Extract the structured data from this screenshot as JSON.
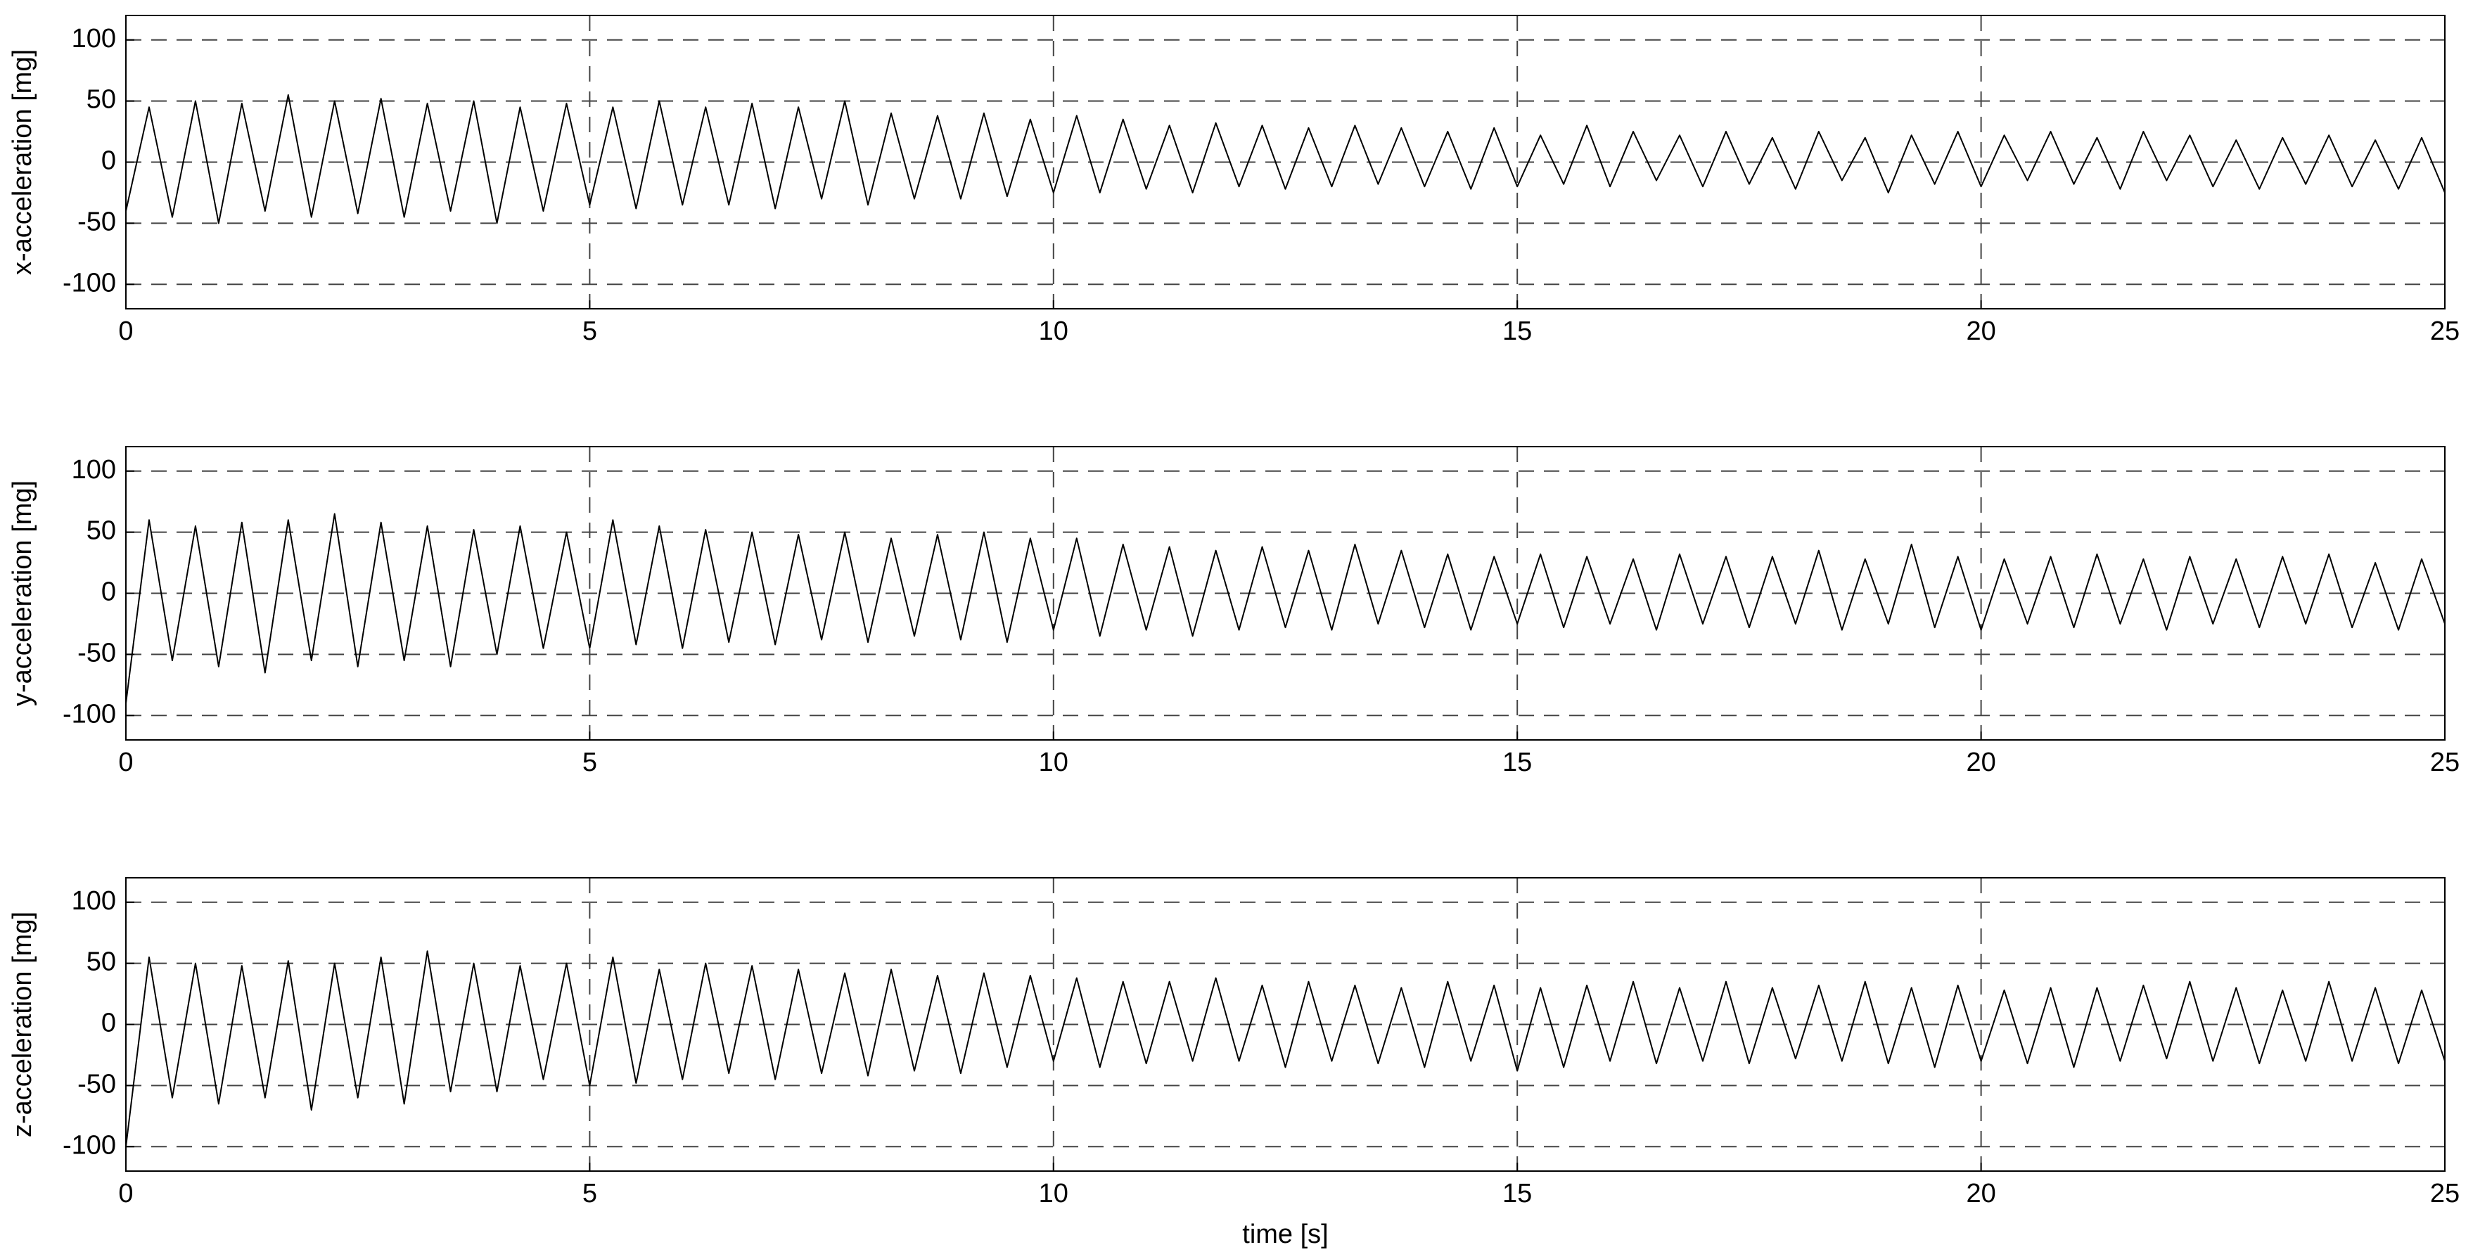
{
  "chart_data": [
    {
      "type": "line",
      "ylabel": "x-acceleration [mg]",
      "color": "#000000",
      "grid": true,
      "xlim": [
        0,
        25
      ],
      "ylim": [
        -120,
        120
      ],
      "xticks": [
        0,
        5,
        10,
        15,
        20,
        25
      ],
      "yticks": [
        -100,
        -50,
        0,
        50,
        100
      ],
      "x": [
        0,
        0.25,
        0.5,
        0.75,
        1,
        1.25,
        1.5,
        1.75,
        2,
        2.25,
        2.5,
        2.75,
        3,
        3.25,
        3.5,
        3.75,
        4,
        4.25,
        4.5,
        4.75,
        5,
        5.25,
        5.5,
        5.75,
        6,
        6.25,
        6.5,
        6.75,
        7,
        7.25,
        7.5,
        7.75,
        8,
        8.25,
        8.5,
        8.75,
        9,
        9.25,
        9.5,
        9.75,
        10,
        10.25,
        10.5,
        10.75,
        11,
        11.25,
        11.5,
        11.75,
        12,
        12.25,
        12.5,
        12.75,
        13,
        13.25,
        13.5,
        13.75,
        14,
        14.25,
        14.5,
        14.75,
        15,
        15.25,
        15.5,
        15.75,
        16,
        16.25,
        16.5,
        16.75,
        17,
        17.25,
        17.5,
        17.75,
        18,
        18.25,
        18.5,
        18.75,
        19,
        19.25,
        19.5,
        19.75,
        20,
        20.25,
        20.5,
        20.75,
        21,
        21.25,
        21.5,
        21.75,
        22,
        22.25,
        22.5,
        22.75,
        23,
        23.25,
        23.5,
        23.75,
        24,
        24.25,
        24.5,
        24.75,
        25
      ],
      "values": [
        -40,
        45,
        -45,
        50,
        -50,
        48,
        -40,
        55,
        -45,
        50,
        -42,
        52,
        -45,
        48,
        -40,
        50,
        -50,
        45,
        -40,
        48,
        -35,
        45,
        -38,
        50,
        -35,
        45,
        -35,
        48,
        -38,
        45,
        -30,
        50,
        -35,
        40,
        -30,
        38,
        -30,
        40,
        -28,
        35,
        -25,
        38,
        -25,
        35,
        -22,
        30,
        -25,
        32,
        -20,
        30,
        -22,
        28,
        -20,
        30,
        -18,
        28,
        -20,
        25,
        -22,
        28,
        -20,
        22,
        -18,
        30,
        -20,
        25,
        -15,
        22,
        -20,
        25,
        -18,
        20,
        -22,
        25,
        -15,
        20,
        -25,
        22,
        -18,
        25,
        -20,
        22,
        -15,
        25,
        -18,
        20,
        -22,
        25,
        -15,
        22,
        -20,
        18,
        -22,
        20,
        -18,
        22,
        -20,
        18,
        -22,
        20,
        -25
      ]
    },
    {
      "type": "line",
      "ylabel": "y-acceleration [mg]",
      "color": "#000000",
      "grid": true,
      "xlim": [
        0,
        25
      ],
      "ylim": [
        -120,
        120
      ],
      "xticks": [
        0,
        5,
        10,
        15,
        20,
        25
      ],
      "yticks": [
        -100,
        -50,
        0,
        50,
        100
      ],
      "x": [
        0,
        0.25,
        0.5,
        0.75,
        1,
        1.25,
        1.5,
        1.75,
        2,
        2.25,
        2.5,
        2.75,
        3,
        3.25,
        3.5,
        3.75,
        4,
        4.25,
        4.5,
        4.75,
        5,
        5.25,
        5.5,
        5.75,
        6,
        6.25,
        6.5,
        6.75,
        7,
        7.25,
        7.5,
        7.75,
        8,
        8.25,
        8.5,
        8.75,
        9,
        9.25,
        9.5,
        9.75,
        10,
        10.25,
        10.5,
        10.75,
        11,
        11.25,
        11.5,
        11.75,
        12,
        12.25,
        12.5,
        12.75,
        13,
        13.25,
        13.5,
        13.75,
        14,
        14.25,
        14.5,
        14.75,
        15,
        15.25,
        15.5,
        15.75,
        16,
        16.25,
        16.5,
        16.75,
        17,
        17.25,
        17.5,
        17.75,
        18,
        18.25,
        18.5,
        18.75,
        19,
        19.25,
        19.5,
        19.75,
        20,
        20.25,
        20.5,
        20.75,
        21,
        21.25,
        21.5,
        21.75,
        22,
        22.25,
        22.5,
        22.75,
        23,
        23.25,
        23.5,
        23.75,
        24,
        24.25,
        24.5,
        24.75,
        25
      ],
      "values": [
        -90,
        60,
        -55,
        55,
        -60,
        58,
        -65,
        60,
        -55,
        65,
        -60,
        58,
        -55,
        55,
        -60,
        52,
        -50,
        55,
        -45,
        50,
        -45,
        60,
        -42,
        55,
        -45,
        52,
        -40,
        50,
        -42,
        48,
        -38,
        50,
        -40,
        45,
        -35,
        48,
        -38,
        50,
        -40,
        45,
        -30,
        45,
        -35,
        40,
        -30,
        38,
        -35,
        35,
        -30,
        38,
        -28,
        35,
        -30,
        40,
        -25,
        35,
        -28,
        32,
        -30,
        30,
        -25,
        32,
        -28,
        30,
        -25,
        28,
        -30,
        32,
        -25,
        30,
        -28,
        30,
        -25,
        35,
        -30,
        28,
        -25,
        40,
        -28,
        30,
        -30,
        28,
        -25,
        30,
        -28,
        32,
        -25,
        28,
        -30,
        30,
        -25,
        28,
        -28,
        30,
        -25,
        32,
        -28,
        25,
        -30,
        28,
        -25
      ]
    },
    {
      "type": "line",
      "ylabel": "z-acceleration [mg]",
      "xlabel": "time [s]",
      "color": "#000000",
      "grid": true,
      "xlim": [
        0,
        25
      ],
      "ylim": [
        -120,
        120
      ],
      "xticks": [
        0,
        5,
        10,
        15,
        20,
        25
      ],
      "yticks": [
        -100,
        -50,
        0,
        50,
        100
      ],
      "x": [
        0,
        0.25,
        0.5,
        0.75,
        1,
        1.25,
        1.5,
        1.75,
        2,
        2.25,
        2.5,
        2.75,
        3,
        3.25,
        3.5,
        3.75,
        4,
        4.25,
        4.5,
        4.75,
        5,
        5.25,
        5.5,
        5.75,
        6,
        6.25,
        6.5,
        6.75,
        7,
        7.25,
        7.5,
        7.75,
        8,
        8.25,
        8.5,
        8.75,
        9,
        9.25,
        9.5,
        9.75,
        10,
        10.25,
        10.5,
        10.75,
        11,
        11.25,
        11.5,
        11.75,
        12,
        12.25,
        12.5,
        12.75,
        13,
        13.25,
        13.5,
        13.75,
        14,
        14.25,
        14.5,
        14.75,
        15,
        15.25,
        15.5,
        15.75,
        16,
        16.25,
        16.5,
        16.75,
        17,
        17.25,
        17.5,
        17.75,
        18,
        18.25,
        18.5,
        18.75,
        19,
        19.25,
        19.5,
        19.75,
        20,
        20.25,
        20.5,
        20.75,
        21,
        21.25,
        21.5,
        21.75,
        22,
        22.25,
        22.5,
        22.75,
        23,
        23.25,
        23.5,
        23.75,
        24,
        24.25,
        24.5,
        24.75,
        25
      ],
      "values": [
        -100,
        55,
        -60,
        50,
        -65,
        48,
        -60,
        52,
        -70,
        50,
        -60,
        55,
        -65,
        60,
        -55,
        50,
        -55,
        48,
        -45,
        50,
        -50,
        55,
        -48,
        45,
        -45,
        50,
        -40,
        48,
        -45,
        45,
        -40,
        42,
        -42,
        45,
        -38,
        40,
        -40,
        42,
        -35,
        40,
        -30,
        38,
        -35,
        35,
        -32,
        35,
        -30,
        38,
        -30,
        32,
        -35,
        35,
        -30,
        32,
        -32,
        30,
        -35,
        35,
        -30,
        32,
        -38,
        30,
        -35,
        32,
        -30,
        35,
        -32,
        30,
        -30,
        35,
        -32,
        30,
        -28,
        32,
        -30,
        35,
        -32,
        30,
        -35,
        32,
        -30,
        28,
        -32,
        30,
        -35,
        30,
        -30,
        32,
        -28,
        35,
        -30,
        30,
        -32,
        28,
        -30,
        35,
        -30,
        30,
        -32,
        28,
        -30
      ]
    }
  ]
}
